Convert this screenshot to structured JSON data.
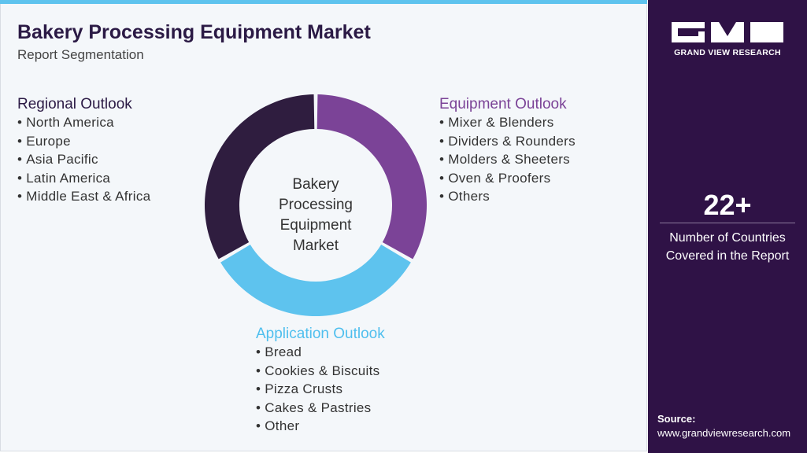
{
  "header": {
    "title": "Bakery Processing Equipment Market",
    "subtitle": "Report Segmentation"
  },
  "center_label": "Bakery Processing Equipment Market",
  "segments": [
    {
      "title": "Regional Outlook",
      "items": [
        "North America",
        "Europe",
        "Asia Pacific",
        "Latin America",
        "Middle East & Africa"
      ]
    },
    {
      "title": "Equipment Outlook",
      "items": [
        "Mixer & Blenders",
        "Dividers & Rounders",
        "Molders & Sheeters",
        "Oven & Proofers",
        "Others"
      ]
    },
    {
      "title": "Application Outlook",
      "items": [
        "Bread",
        "Cookies & Biscuits",
        "Pizza Crusts",
        "Cakes & Pastries",
        "Other"
      ]
    }
  ],
  "brand": {
    "name": "GRAND VIEW RESEARCH"
  },
  "stat": {
    "value": "22+",
    "label": "Number of Countries Covered in the Report"
  },
  "source": {
    "label": "Source:",
    "url": "www.grandviewresearch.com"
  }
}
